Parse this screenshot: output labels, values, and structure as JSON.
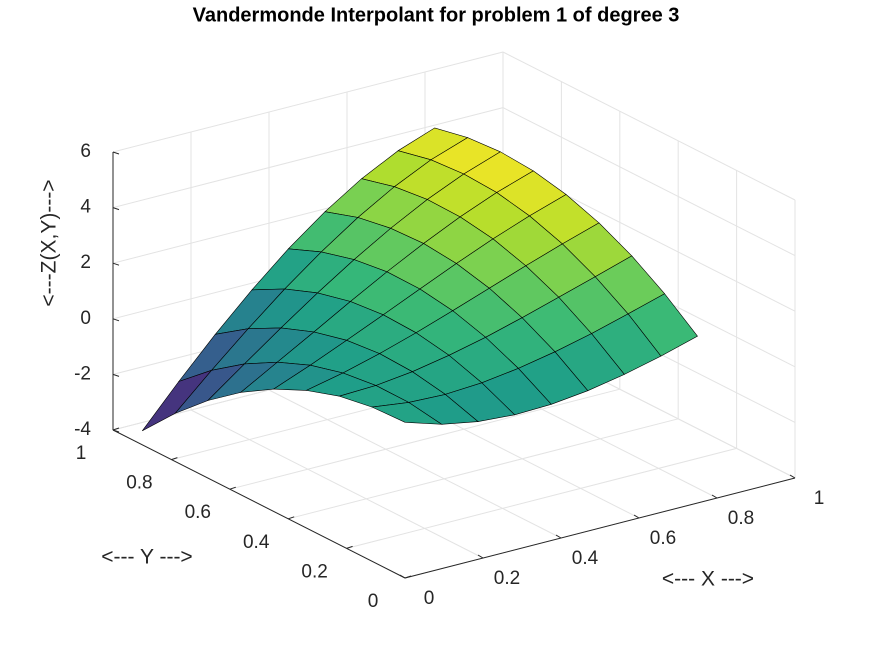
{
  "chart_data": {
    "type": "surface",
    "title": "Vandermonde Interpolant for problem 1 of degree 3",
    "xlabel": "<--- X --->",
    "ylabel": "<--- Y --->",
    "zlabel": "<---Z(X,Y)--->",
    "x": [
      0,
      0.09375,
      0.1875,
      0.28125,
      0.375,
      0.46875,
      0.5625,
      0.65625,
      0.75
    ],
    "y": [
      0,
      0.1125,
      0.225,
      0.3375,
      0.45,
      0.5625,
      0.675,
      0.7875,
      0.9
    ],
    "z": [
      [
        1.6,
        1.19,
        0.95,
        0.86,
        0.9,
        1.05,
        1.3,
        1.62,
        2.0
      ],
      [
        1.55,
        1.38,
        1.33,
        1.41,
        1.59,
        1.85,
        2.17,
        2.54,
        2.93
      ],
      [
        1.34,
        1.39,
        1.55,
        1.8,
        2.11,
        2.48,
        2.88,
        3.28,
        3.69
      ],
      [
        0.95,
        1.24,
        1.6,
        2.01,
        2.47,
        2.94,
        3.41,
        3.86,
        4.28
      ],
      [
        0.4,
        0.92,
        1.48,
        2.06,
        2.65,
        3.23,
        3.78,
        4.27,
        4.7
      ],
      [
        -0.32,
        0.43,
        1.18,
        1.94,
        2.67,
        3.35,
        3.97,
        4.51,
        4.95
      ],
      [
        -1.21,
        -0.23,
        0.73,
        1.65,
        2.51,
        3.3,
        4.0,
        4.58,
        5.04
      ],
      [
        -2.27,
        -1.06,
        0.1,
        1.19,
        2.19,
        3.09,
        3.86,
        4.49,
        4.95
      ],
      [
        -3.5,
        -2.06,
        -0.7,
        0.56,
        1.7,
        2.7,
        3.55,
        4.22,
        4.7
      ]
    ],
    "xlim": [
      0,
      1
    ],
    "ylim": [
      0,
      1
    ],
    "zlim": [
      -4,
      6
    ],
    "xticks": [
      0,
      0.2,
      0.4,
      0.6,
      0.8,
      1
    ],
    "yticks": [
      0,
      0.2,
      0.4,
      0.6,
      0.8,
      1
    ],
    "zticks": [
      -4,
      -2,
      0,
      2,
      4,
      6
    ],
    "grid": true,
    "colormap": "viridis",
    "edge_color": "#000000"
  }
}
